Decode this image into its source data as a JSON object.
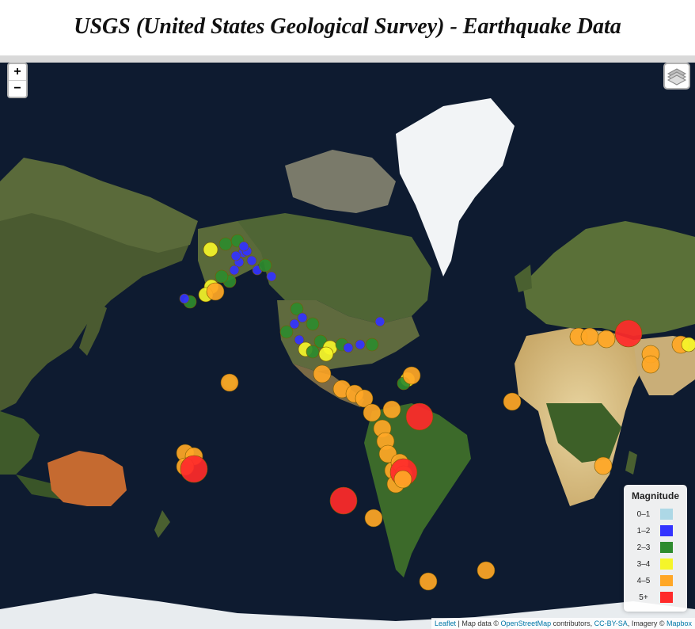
{
  "page": {
    "title": "USGS (United States Geological Survey) - Earthquake Data"
  },
  "map": {
    "zoom_in": "+",
    "zoom_out": "−",
    "layers_control": "layers-icon",
    "ocean_color": "#0d1a2e"
  },
  "legend": {
    "title": "Magnitude",
    "items": [
      {
        "label": "0–1",
        "color": "#add8e6"
      },
      {
        "label": "1–2",
        "color": "#3333ff"
      },
      {
        "label": "2–3",
        "color": "#2e8b2e"
      },
      {
        "label": "3–4",
        "color": "#f5f52a"
      },
      {
        "label": "4–5",
        "color": "#ffa726"
      },
      {
        "label": "5+",
        "color": "#ff2a2a"
      }
    ]
  },
  "attribution": {
    "leaflet": "Leaflet",
    "sep": " | Map data © ",
    "osm": "OpenStreetMap",
    "contributors": " contributors, ",
    "license": "CC-BY-SA",
    "imagery": ", Imagery © ",
    "mapbox": "Mapbox"
  }
}
